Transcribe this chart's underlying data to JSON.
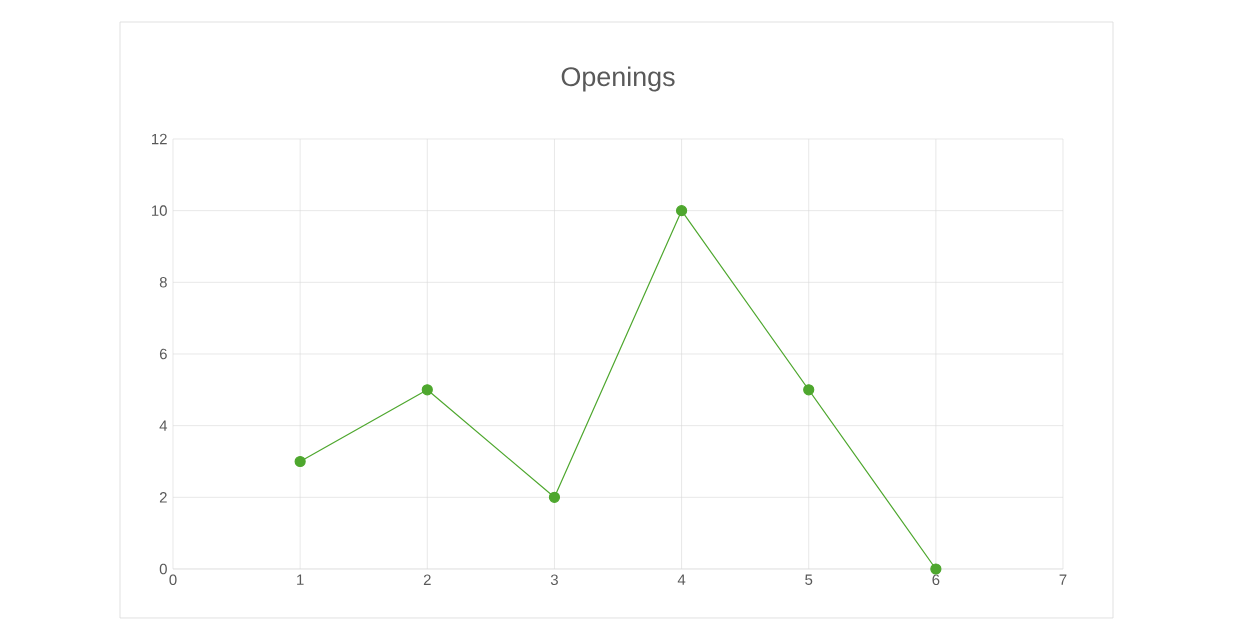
{
  "chart_data": {
    "type": "line",
    "title": "Openings",
    "x": [
      1,
      2,
      3,
      4,
      5,
      6
    ],
    "series": [
      {
        "color": "#4ea72e",
        "values": [
          3,
          5,
          2,
          10,
          5,
          0
        ]
      }
    ],
    "xlim": [
      0,
      7
    ],
    "xticks": [
      0,
      1,
      2,
      3,
      4,
      5,
      6,
      7
    ],
    "ylim": [
      0,
      12
    ],
    "yticks": [
      0,
      2,
      4,
      6,
      8,
      10,
      12
    ],
    "grid": true,
    "marker": "circle",
    "line_style": "solid"
  }
}
